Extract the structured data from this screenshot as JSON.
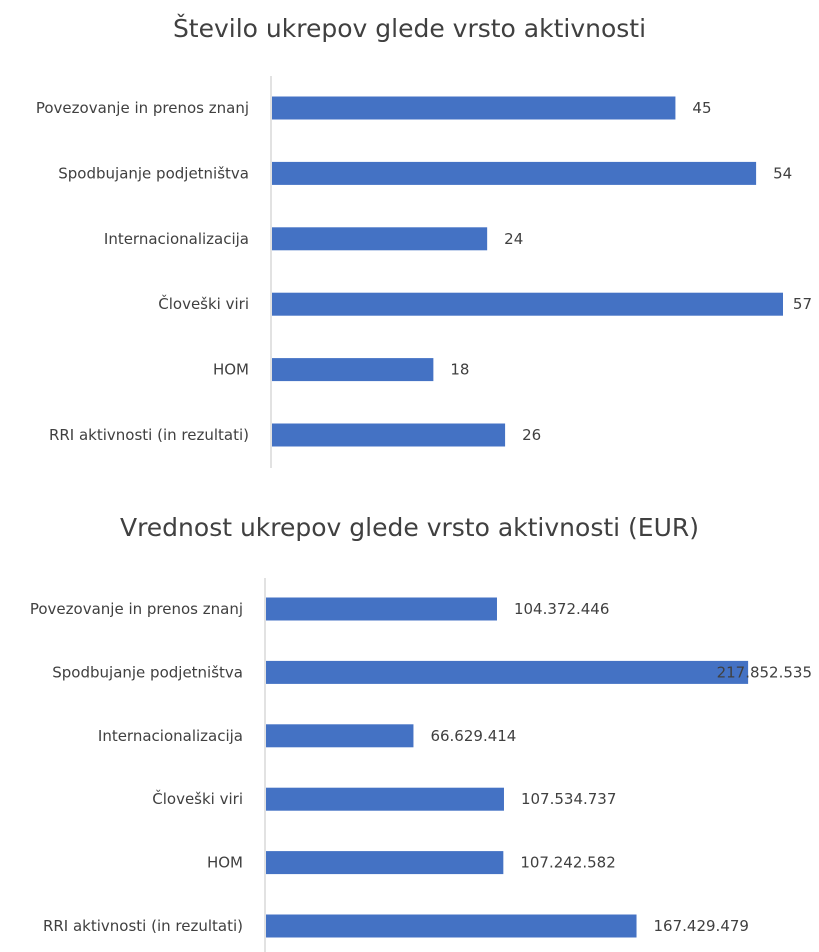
{
  "chart_data": [
    {
      "type": "bar",
      "orientation": "horizontal",
      "title": "Število ukrepov glede vrsto aktivnosti",
      "categories": [
        "Povezovanje in prenos znanj",
        "Spodbujanje podjetništva",
        "Internacionalizacija",
        "Človeški viri",
        "HOM",
        "RRI aktivnosti (in rezultati)"
      ],
      "values": [
        45,
        54,
        24,
        57,
        18,
        26
      ],
      "value_labels": [
        "45",
        "54",
        "24",
        "57",
        "18",
        "26"
      ],
      "xlim": [
        0,
        57
      ],
      "grid": false,
      "color": "#4472c4"
    },
    {
      "type": "bar",
      "orientation": "horizontal",
      "title": "Vrednost ukrepov glede vrsto aktivnosti (EUR)",
      "categories": [
        "Povezovanje in prenos znanj",
        "Spodbujanje podjetništva",
        "Internacionalizacija",
        "Človeški viri",
        "HOM",
        "RRI aktivnosti (in rezultati)"
      ],
      "values": [
        104372446,
        217852535,
        66629414,
        107534737,
        107242582,
        167429479
      ],
      "value_labels": [
        "104.372.446",
        "217.852.535",
        "66.629.414",
        "107.534.737",
        "107.242.582",
        "167.429.479"
      ],
      "xlim": [
        0,
        230000000
      ],
      "grid": false,
      "color": "#4472c4"
    }
  ]
}
